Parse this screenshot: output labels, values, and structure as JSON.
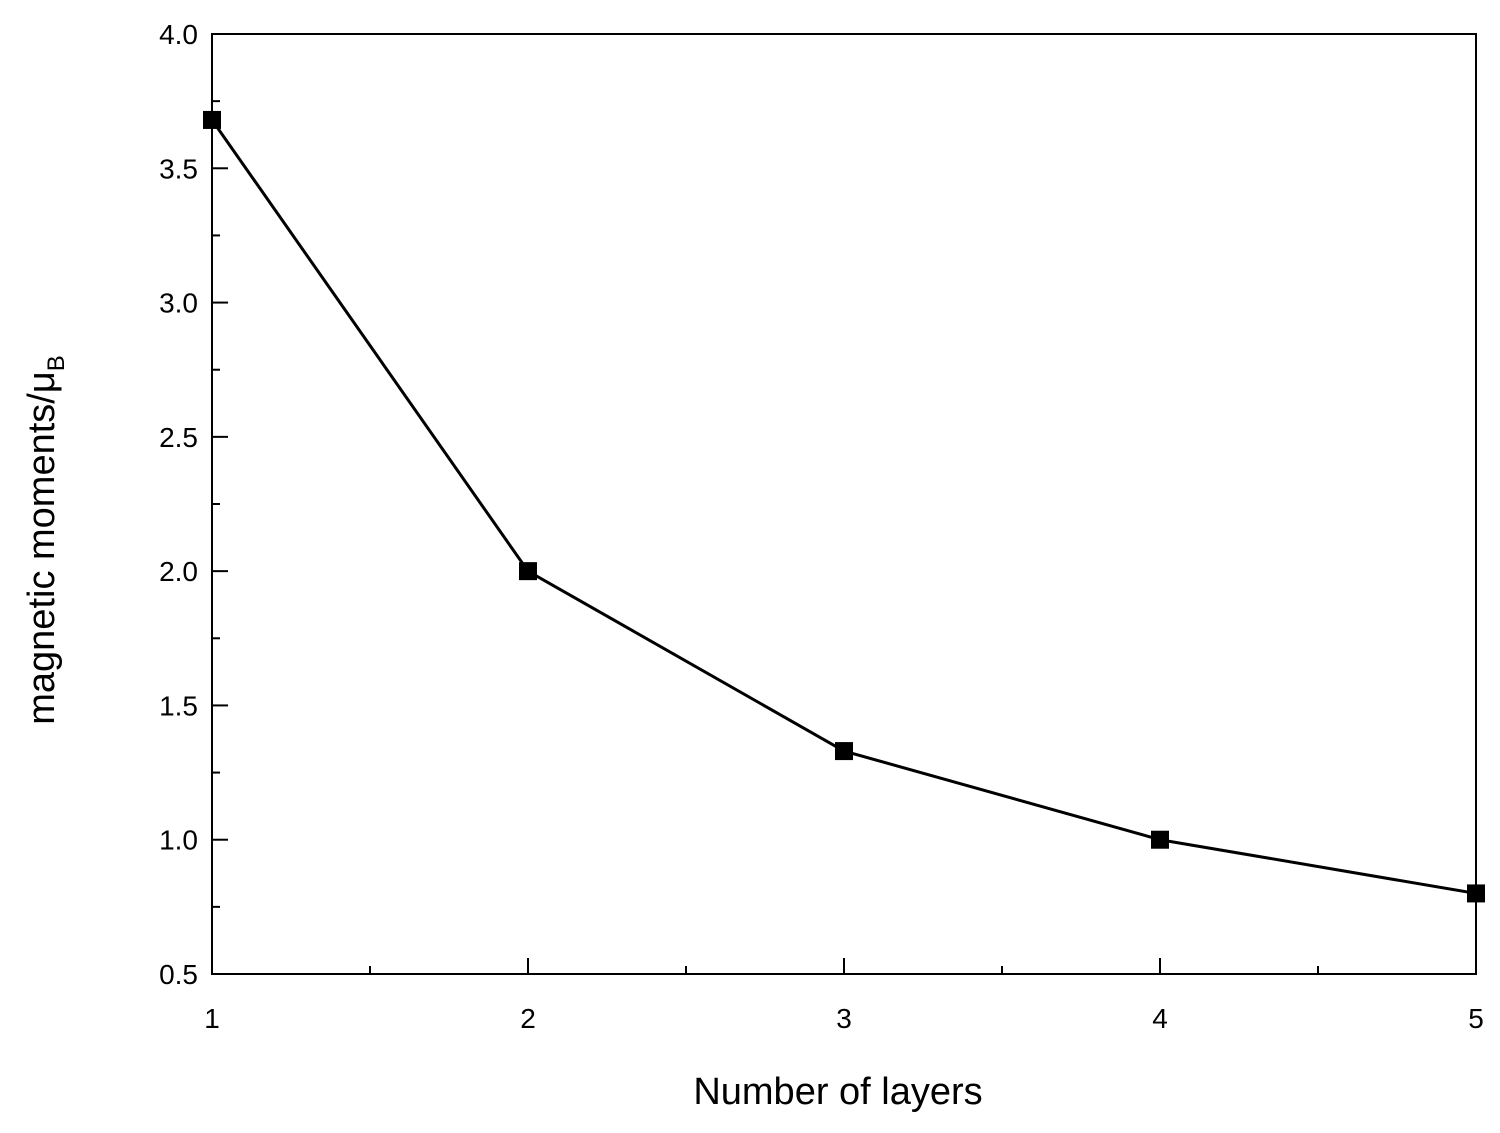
{
  "chart_data": {
    "type": "line",
    "title": "",
    "xlabel": "Number of layers",
    "ylabel": {
      "main": "magnetic moments/",
      "symbol": "μ",
      "subscript": "B"
    },
    "xlim": [
      1,
      5
    ],
    "ylim": [
      0.5,
      4.0
    ],
    "x_ticks": [
      "1",
      "2",
      "3",
      "4",
      "5"
    ],
    "y_ticks": [
      "0.5",
      "1.0",
      "1.5",
      "2.0",
      "2.5",
      "3.0",
      "3.5",
      "4.0"
    ],
    "grid": false,
    "marker": "square",
    "series": [
      {
        "x": [
          1,
          2,
          3,
          4,
          5
        ],
        "values": [
          3.68,
          2.0,
          1.33,
          1.0,
          0.8
        ]
      }
    ],
    "colors": {
      "line": "#000000",
      "marker": "#000000",
      "axis": "#000000",
      "background": "#ffffff"
    }
  }
}
